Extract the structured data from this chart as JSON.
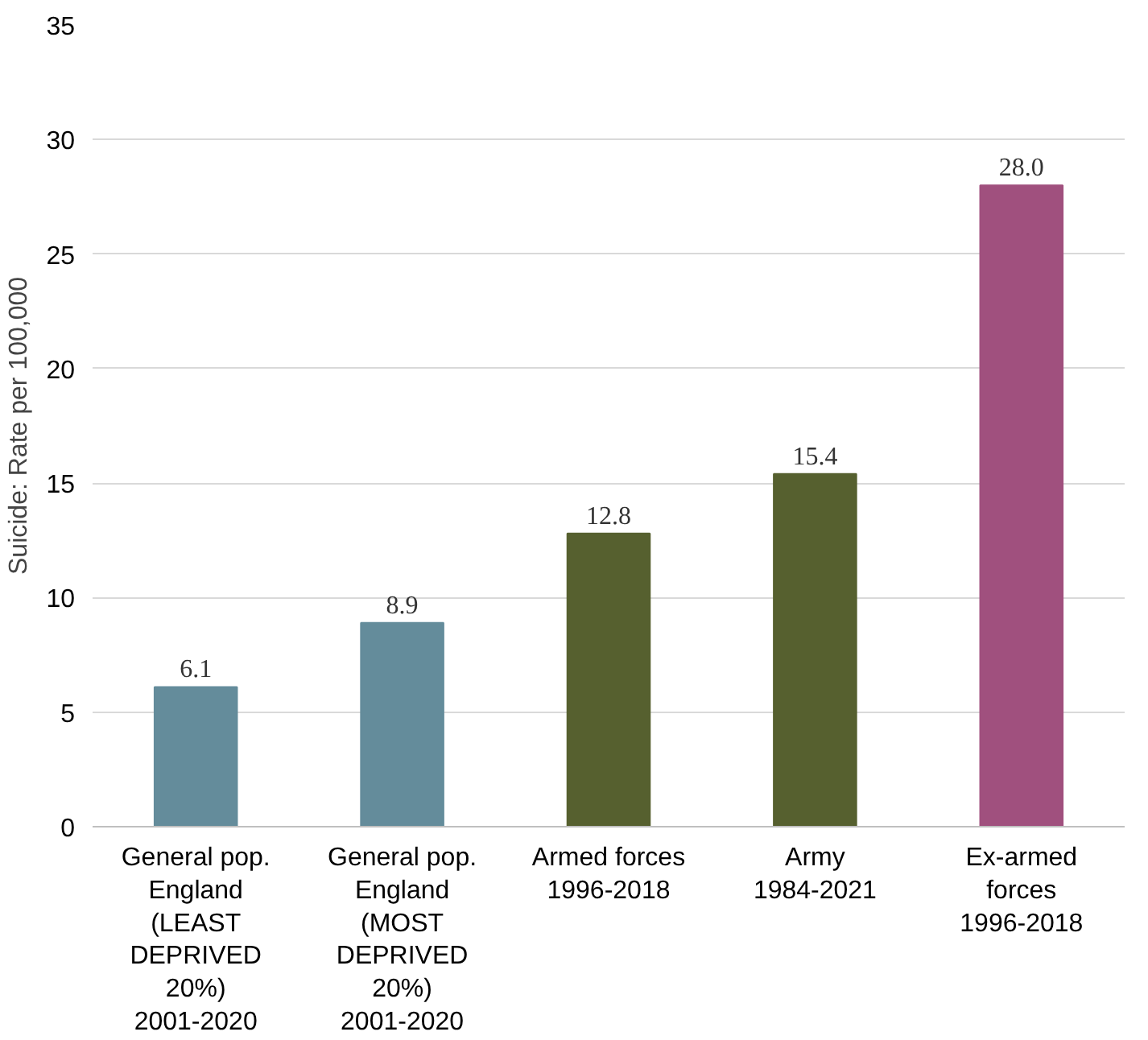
{
  "chart_data": {
    "type": "bar",
    "ylabel": "Suicide: Rate per 100,000",
    "categories": [
      "General pop.\nEngland\n(LEAST\nDEPRIVED\n20%)\n2001-2020",
      "General pop.\nEngland\n(MOST\nDEPRIVED\n20%)\n2001-2020",
      "Armed forces\n1996-2018",
      "Army\n1984-2021",
      "Ex-armed\nforces\n1996-2018"
    ],
    "values": [
      6.1,
      8.9,
      12.8,
      15.4,
      28.0
    ],
    "value_labels": [
      "6.1",
      "8.9",
      "12.8",
      "15.4",
      "28.0"
    ],
    "colors": [
      "#648c9b",
      "#648c9b",
      "#56602f",
      "#56602f",
      "#a0507e"
    ],
    "ylim": [
      0,
      35
    ],
    "yticks": [
      0,
      5,
      10,
      15,
      20,
      25,
      30,
      35
    ],
    "grid": "y"
  }
}
